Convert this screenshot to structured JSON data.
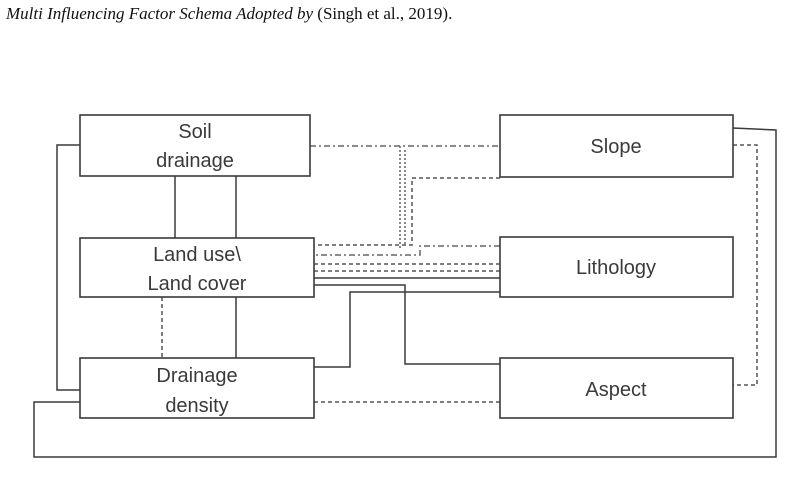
{
  "caption": {
    "italic": "Multi Influencing Factor Schema Adopted by",
    "citation": " (Singh et al., 2019)."
  },
  "nodes": {
    "soil_drainage": [
      "Soil",
      "drainage"
    ],
    "land_use": [
      "Land use\\",
      "Land cover"
    ],
    "drainage_density": [
      "Drainage",
      "density"
    ],
    "slope": [
      "Slope"
    ],
    "lithology": [
      "Lithology"
    ],
    "aspect": [
      "Aspect"
    ]
  }
}
